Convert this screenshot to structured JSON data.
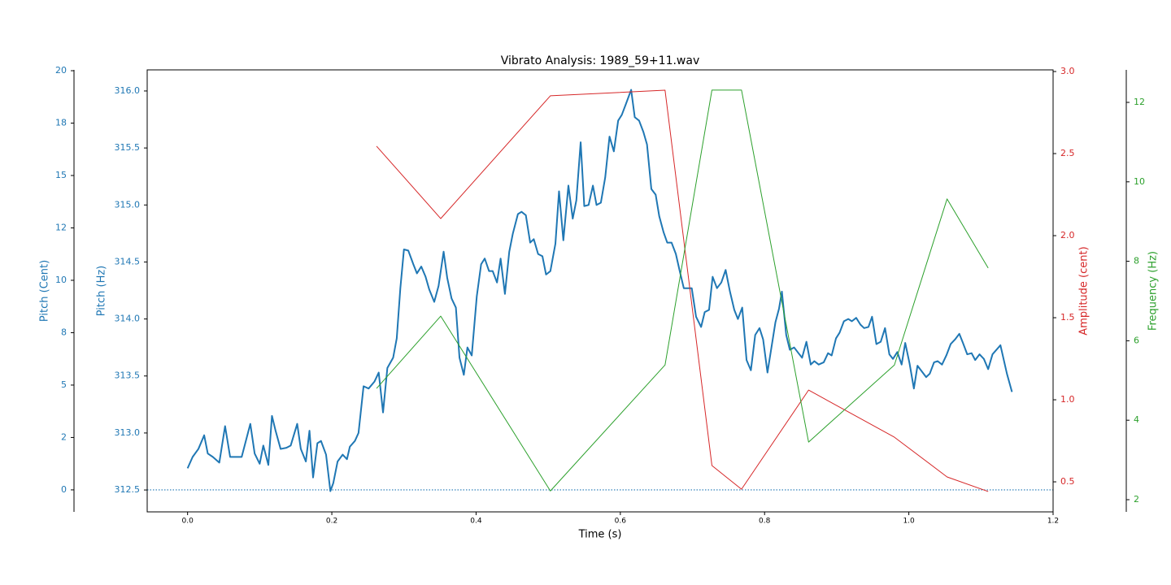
{
  "chart_data": {
    "type": "line",
    "title": "Vibrato Analysis: 1989_59+11.wav",
    "xlabel": "Time (s)",
    "xlim": [
      -0.056,
      1.2
    ],
    "xticks": [
      {
        "value": 0,
        "label": "0.0"
      },
      0.2,
      0.4,
      0.6,
      0.8,
      {
        "value": 1,
        "label": "1.0"
      },
      1.2
    ],
    "ylabel": "Pitch (Hz)",
    "ylim": [
      312.308,
      316.185
    ],
    "yticks": [
      312.5,
      {
        "value": 313,
        "label": "313.0"
      },
      313.5,
      {
        "value": 314,
        "label": "314.0"
      },
      314.5,
      {
        "value": 315,
        "label": "315.0"
      },
      315.5,
      {
        "value": 316,
        "label": "316.0"
      }
    ],
    "ycolor": "#1f77b4",
    "y2label": "Amplitude (cent)",
    "y2lim": [
      0.317,
      3.01
    ],
    "y2ticks": [
      0.5,
      {
        "value": 1,
        "label": "1.0"
      },
      1.5,
      {
        "value": 2,
        "label": "2.0"
      },
      2.5,
      {
        "value": 3,
        "label": "3.0"
      }
    ],
    "y2color": "#d62728",
    "y3label": "Frequency (Hz)",
    "y3lim": [
      1.693,
      12.818
    ],
    "y3ticks": [
      2,
      4,
      6,
      8,
      10,
      12
    ],
    "y3color": "#2ca02c",
    "y4label": "Pitch (Cent)",
    "y4lim": [
      -1.05,
      20.04
    ],
    "y4ticks": [
      0,
      {
        "value": 2.5,
        "label": "2"
      },
      5,
      {
        "value": 7.5,
        "label": "8"
      },
      10,
      {
        "value": 12.5,
        "label": "12"
      },
      15,
      {
        "value": 17.5,
        "label": "18"
      },
      20
    ],
    "y4color": "#1f77b4",
    "hline": {
      "value": 0,
      "axis": "y4",
      "color": "#1f77b4",
      "style": "dotted"
    },
    "series": [
      {
        "color": "#1f77b4",
        "axis": "y",
        "width": 2,
        "x": [
          0,
          0.007,
          0.015,
          0.023,
          0.028,
          0.035,
          0.044,
          0.052,
          0.059,
          0.067,
          0.075,
          0.087,
          0.093,
          0.1,
          0.105,
          0.112,
          0.117,
          0.122,
          0.129,
          0.137,
          0.143,
          0.152,
          0.157,
          0.164,
          0.169,
          0.174,
          0.18,
          0.185,
          0.192,
          0.198,
          0.202,
          0.208,
          0.215,
          0.221,
          0.225,
          0.232,
          0.237,
          0.244,
          0.251,
          0.259,
          0.265,
          0.271,
          0.277,
          0.285,
          0.29,
          0.295,
          0.3,
          0.306,
          0.313,
          0.318,
          0.324,
          0.33,
          0.335,
          0.342,
          0.348,
          0.355,
          0.36,
          0.366,
          0.372,
          0.377,
          0.383,
          0.388,
          0.394,
          0.401,
          0.407,
          0.412,
          0.418,
          0.423,
          0.429,
          0.434,
          0.44,
          0.446,
          0.451,
          0.458,
          0.463,
          0.469,
          0.475,
          0.48,
          0.486,
          0.492,
          0.497,
          0.503,
          0.51,
          0.515,
          0.521,
          0.528,
          0.534,
          0.539,
          0.545,
          0.55,
          0.556,
          0.562,
          0.567,
          0.573,
          0.579,
          0.585,
          0.591,
          0.597,
          0.602,
          0.608,
          0.615,
          0.62,
          0.626,
          0.632,
          0.637,
          0.643,
          0.649,
          0.654,
          0.66,
          0.665,
          0.671,
          0.677,
          0.682,
          0.688,
          0.694,
          0.699,
          0.705,
          0.712,
          0.717,
          0.723,
          0.728,
          0.734,
          0.74,
          0.746,
          0.752,
          0.758,
          0.763,
          0.769,
          0.775,
          0.781,
          0.787,
          0.793,
          0.798,
          0.804,
          0.809,
          0.815,
          0.82,
          0.824,
          0.83,
          0.835,
          0.841,
          0.847,
          0.852,
          0.858,
          0.864,
          0.869,
          0.875,
          0.882,
          0.888,
          0.893,
          0.899,
          0.904,
          0.91,
          0.916,
          0.921,
          0.927,
          0.933,
          0.938,
          0.944,
          0.949,
          0.955,
          0.961,
          0.967,
          0.973,
          0.978,
          0.984,
          0.99,
          0.995,
          1.001,
          1.007,
          1.012,
          1.018,
          1.024,
          1.029,
          1.035,
          1.04,
          1.046,
          1.052,
          1.058,
          1.064,
          1.07,
          1.075,
          1.081,
          1.087,
          1.092,
          1.098,
          1.104,
          1.11,
          1.116,
          1.127,
          1.136,
          1.143
        ],
        "values": [
          312.69,
          312.79,
          312.86,
          312.98,
          312.82,
          312.79,
          312.74,
          313.06,
          312.79,
          312.79,
          312.79,
          313.08,
          312.82,
          312.73,
          312.89,
          312.72,
          313.15,
          313.02,
          312.86,
          312.87,
          312.89,
          313.08,
          312.86,
          312.75,
          313.02,
          312.61,
          312.91,
          312.93,
          312.81,
          312.49,
          312.56,
          312.75,
          312.81,
          312.77,
          312.88,
          312.93,
          313.0,
          313.41,
          313.39,
          313.45,
          313.53,
          313.18,
          313.57,
          313.66,
          313.83,
          314.27,
          314.61,
          314.6,
          314.48,
          314.4,
          314.46,
          314.37,
          314.26,
          314.15,
          314.29,
          314.59,
          314.36,
          314.18,
          314.1,
          313.66,
          313.51,
          313.75,
          313.68,
          314.2,
          314.48,
          314.53,
          314.42,
          314.42,
          314.32,
          314.53,
          314.22,
          314.59,
          314.75,
          314.92,
          314.94,
          314.91,
          314.67,
          314.7,
          314.57,
          314.55,
          314.39,
          314.42,
          314.66,
          315.12,
          314.69,
          315.17,
          314.88,
          315.04,
          315.55,
          314.99,
          315.0,
          315.17,
          315.0,
          315.02,
          315.24,
          315.6,
          315.47,
          315.74,
          315.79,
          315.89,
          316.01,
          315.77,
          315.74,
          315.64,
          315.53,
          315.14,
          315.09,
          314.9,
          314.76,
          314.67,
          314.67,
          314.57,
          314.43,
          314.27,
          314.27,
          314.27,
          314.02,
          313.93,
          314.06,
          314.08,
          314.37,
          314.27,
          314.32,
          314.43,
          314.24,
          314.08,
          314.0,
          314.1,
          313.64,
          313.55,
          313.86,
          313.92,
          313.82,
          313.53,
          313.73,
          313.97,
          314.09,
          314.24,
          313.86,
          313.73,
          313.75,
          313.7,
          313.66,
          313.8,
          313.6,
          313.63,
          313.6,
          313.62,
          313.7,
          313.68,
          313.83,
          313.88,
          313.98,
          314.0,
          313.98,
          314.01,
          313.95,
          313.92,
          313.93,
          314.02,
          313.78,
          313.8,
          313.92,
          313.69,
          313.65,
          313.71,
          313.6,
          313.79,
          313.61,
          313.39,
          313.59,
          313.54,
          313.49,
          313.52,
          313.62,
          313.63,
          313.6,
          313.68,
          313.78,
          313.82,
          313.87,
          313.79,
          313.69,
          313.7,
          313.64,
          313.69,
          313.65,
          313.56,
          313.69,
          313.77,
          313.52,
          313.36
        ]
      },
      {
        "color": "#d62728",
        "axis": "y2",
        "width": 1,
        "x": [
          0.262,
          0.351,
          0.503,
          0.662,
          0.727,
          0.768,
          0.861,
          0.98,
          1.053,
          1.11
        ],
        "values": [
          2.545,
          2.104,
          2.852,
          2.886,
          0.599,
          0.455,
          1.059,
          0.772,
          0.53,
          0.441
        ]
      },
      {
        "color": "#2ca02c",
        "axis": "y3",
        "width": 1,
        "x": [
          0.262,
          0.351,
          0.503,
          0.662,
          0.727,
          0.768,
          0.861,
          0.98,
          1.053,
          1.11
        ],
        "values": [
          4.8,
          6.62,
          2.22,
          5.39,
          12.31,
          12.31,
          3.45,
          5.39,
          9.57,
          7.83
        ]
      }
    ]
  }
}
